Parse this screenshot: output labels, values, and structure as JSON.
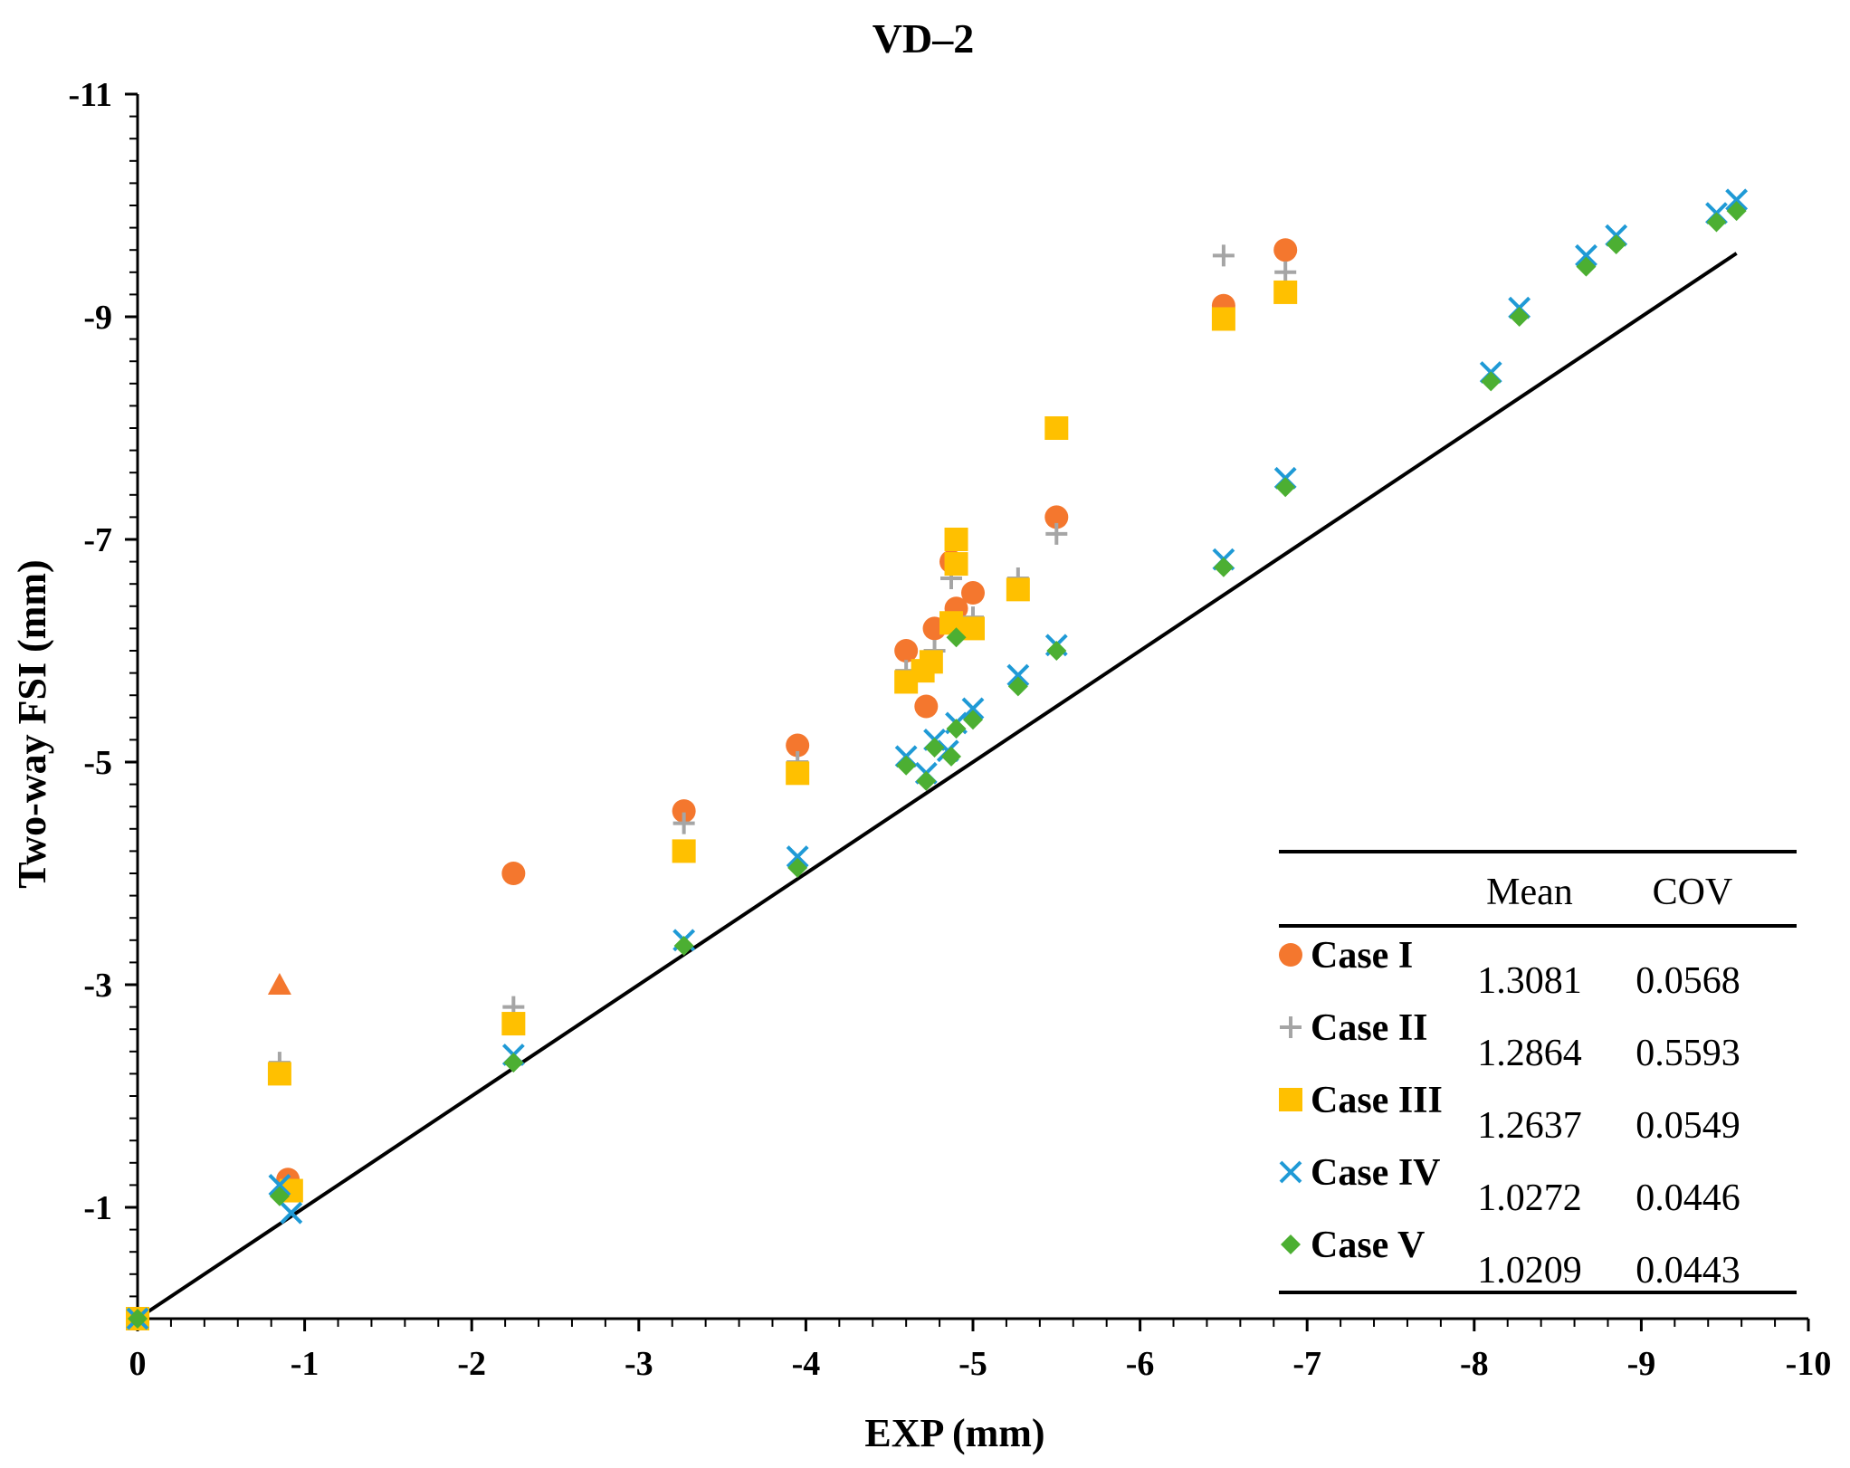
{
  "chart_data": {
    "type": "scatter",
    "title": "VD–2",
    "xlabel": "EXP (mm)",
    "ylabel": "Two-way FSI (mm)",
    "xlim": [
      0,
      -10
    ],
    "ylim": [
      0,
      -11
    ],
    "x_ticks": [
      "0",
      "-1",
      "-2",
      "-3",
      "-4",
      "-5",
      "-6",
      "-7",
      "-8",
      "-9",
      "-10"
    ],
    "y_ticks": [
      "-1",
      "-3",
      "-5",
      "-7",
      "-9",
      "-11"
    ],
    "reference_line": {
      "x": [
        0,
        -9.57
      ],
      "y": [
        0,
        -9.57
      ],
      "color": "#000000"
    },
    "series": [
      {
        "name": "Case I",
        "marker": "circle",
        "color": "#F4772E",
        "mean": "1.3081",
        "cov": "0.0568",
        "points": [
          [
            0,
            0
          ],
          [
            -0.9,
            -1.25
          ],
          [
            -2.25,
            -4.0
          ],
          [
            -3.27,
            -4.56
          ],
          [
            -3.95,
            -5.15
          ],
          [
            -4.6,
            -6.0
          ],
          [
            -4.72,
            -5.5
          ],
          [
            -4.77,
            -6.2
          ],
          [
            -4.87,
            -6.8
          ],
          [
            -4.9,
            -6.38
          ],
          [
            -5.0,
            -6.52
          ],
          [
            -5.5,
            -7.2
          ],
          [
            -6.5,
            -9.1
          ],
          [
            -6.87,
            -9.6
          ]
        ],
        "extra_triangle": [
          -0.85,
          -3.0
        ]
      },
      {
        "name": "Case II",
        "marker": "plus",
        "color": "#A5A5A5",
        "mean": "1.2864",
        "cov": "0.5593",
        "points": [
          [
            0,
            0
          ],
          [
            -0.85,
            -2.3
          ],
          [
            -2.25,
            -2.8
          ],
          [
            -3.27,
            -4.45
          ],
          [
            -3.95,
            -5.0
          ],
          [
            -4.6,
            -5.82
          ],
          [
            -4.77,
            -6.0
          ],
          [
            -4.87,
            -6.65
          ],
          [
            -5.0,
            -6.3
          ],
          [
            -5.27,
            -6.65
          ],
          [
            -5.5,
            -7.05
          ],
          [
            -6.5,
            -9.55
          ],
          [
            -6.87,
            -9.4
          ]
        ]
      },
      {
        "name": "Case III",
        "marker": "square",
        "color": "#FFC000",
        "mean": "1.2637",
        "cov": "0.0549",
        "points": [
          [
            0,
            0
          ],
          [
            -0.85,
            -2.2
          ],
          [
            -0.92,
            -1.15
          ],
          [
            -2.25,
            -2.65
          ],
          [
            -3.27,
            -4.2
          ],
          [
            -3.95,
            -4.9
          ],
          [
            -4.6,
            -5.72
          ],
          [
            -4.7,
            -5.82
          ],
          [
            -4.75,
            -5.9
          ],
          [
            -4.87,
            -6.25
          ],
          [
            -4.9,
            -6.78
          ],
          [
            -4.9,
            -7.0
          ],
          [
            -5.0,
            -6.2
          ],
          [
            -5.27,
            -6.55
          ],
          [
            -5.5,
            -8.0
          ],
          [
            -6.5,
            -8.98
          ],
          [
            -6.87,
            -9.22
          ]
        ]
      },
      {
        "name": "Case IV",
        "marker": "x",
        "color": "#1F9AD6",
        "mean": "1.0272",
        "cov": "0.0446",
        "points": [
          [
            0,
            0
          ],
          [
            -0.85,
            -1.2
          ],
          [
            -0.92,
            -0.95
          ],
          [
            -2.25,
            -2.37
          ],
          [
            -3.27,
            -3.4
          ],
          [
            -3.95,
            -4.15
          ],
          [
            -4.6,
            -5.05
          ],
          [
            -4.72,
            -4.9
          ],
          [
            -4.77,
            -5.2
          ],
          [
            -4.85,
            -5.1
          ],
          [
            -4.9,
            -5.35
          ],
          [
            -5.0,
            -5.48
          ],
          [
            -5.27,
            -5.78
          ],
          [
            -5.5,
            -6.05
          ],
          [
            -6.5,
            -6.82
          ],
          [
            -6.87,
            -7.55
          ],
          [
            -8.1,
            -8.5
          ],
          [
            -8.27,
            -9.08
          ],
          [
            -8.67,
            -9.55
          ],
          [
            -8.85,
            -9.73
          ],
          [
            -9.45,
            -9.93
          ],
          [
            -9.57,
            -10.05
          ]
        ]
      },
      {
        "name": "Case V",
        "marker": "diamond",
        "color": "#4CAF32",
        "mean": "1.0209",
        "cov": "0.0443",
        "points": [
          [
            0,
            0
          ],
          [
            -0.85,
            -1.1
          ],
          [
            -2.25,
            -2.3
          ],
          [
            -3.27,
            -3.35
          ],
          [
            -3.95,
            -4.05
          ],
          [
            -4.6,
            -4.97
          ],
          [
            -4.72,
            -4.83
          ],
          [
            -4.77,
            -5.13
          ],
          [
            -4.87,
            -5.05
          ],
          [
            -4.9,
            -5.3
          ],
          [
            -4.9,
            -6.12
          ],
          [
            -5.0,
            -5.38
          ],
          [
            -5.27,
            -5.68
          ],
          [
            -5.5,
            -6.0
          ],
          [
            -6.5,
            -6.75
          ],
          [
            -6.87,
            -7.47
          ],
          [
            -8.1,
            -8.42
          ],
          [
            -8.27,
            -9.0
          ],
          [
            -8.67,
            -9.45
          ],
          [
            -8.85,
            -9.65
          ],
          [
            -9.45,
            -9.85
          ],
          [
            -9.57,
            -9.95
          ]
        ]
      }
    ],
    "stats_table": {
      "headers": [
        "Mean",
        "COV"
      ]
    }
  }
}
